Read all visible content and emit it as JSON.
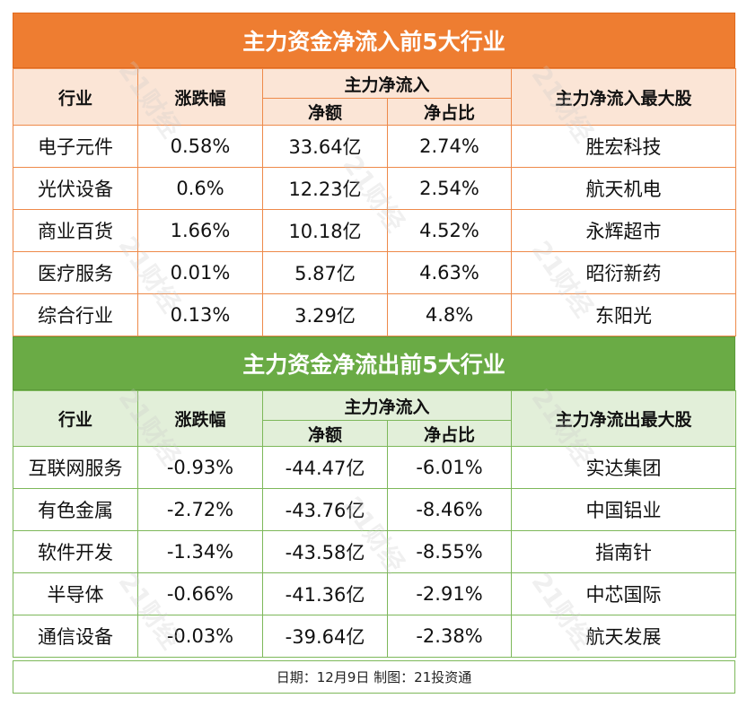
{
  "inflow": {
    "title": "主力资金净流入前5大行业",
    "headers": {
      "industry": "行业",
      "change": "涨跌幅",
      "flow_group": "主力净流入",
      "amount": "净额",
      "ratio": "净占比",
      "top_stock": "主力净流入最大股"
    },
    "rows": [
      {
        "industry": "电子元件",
        "change": "0.58%",
        "amount": "33.64亿",
        "ratio": "2.74%",
        "stock": "胜宏科技"
      },
      {
        "industry": "光伏设备",
        "change": "0.6%",
        "amount": "12.23亿",
        "ratio": "2.54%",
        "stock": "航天机电"
      },
      {
        "industry": "商业百货",
        "change": "1.66%",
        "amount": "10.18亿",
        "ratio": "4.52%",
        "stock": "永辉超市"
      },
      {
        "industry": "医疗服务",
        "change": "0.01%",
        "amount": "5.87亿",
        "ratio": "4.63%",
        "stock": "昭衍新药"
      },
      {
        "industry": "综合行业",
        "change": "0.13%",
        "amount": "3.29亿",
        "ratio": "4.8%",
        "stock": "东阳光"
      }
    ]
  },
  "outflow": {
    "title": "主力资金净流出前5大行业",
    "headers": {
      "industry": "行业",
      "change": "涨跌幅",
      "flow_group": "主力净流入",
      "amount": "净额",
      "ratio": "净占比",
      "top_stock": "主力净流出最大股"
    },
    "rows": [
      {
        "industry": "互联网服务",
        "change": "-0.93%",
        "amount": "-44.47亿",
        "ratio": "-6.01%",
        "stock": "实达集团"
      },
      {
        "industry": "有色金属",
        "change": "-2.72%",
        "amount": "-43.76亿",
        "ratio": "-8.46%",
        "stock": "中国铝业"
      },
      {
        "industry": "软件开发",
        "change": "-1.34%",
        "amount": "-43.58亿",
        "ratio": "-8.55%",
        "stock": "指南针"
      },
      {
        "industry": "半导体",
        "change": "-0.66%",
        "amount": "-41.36亿",
        "ratio": "-2.91%",
        "stock": "中芯国际"
      },
      {
        "industry": "通信设备",
        "change": "-0.03%",
        "amount": "-39.64亿",
        "ratio": "-2.38%",
        "stock": "航天发展"
      }
    ]
  },
  "footer": "日期：12月9日 制图：21投资通",
  "watermark": "21财经",
  "colors": {
    "inflow_banner": "#ee7d31",
    "inflow_header_bg": "#fbe5d6",
    "outflow_banner": "#6aab45",
    "outflow_header_bg": "#e2efd9"
  }
}
